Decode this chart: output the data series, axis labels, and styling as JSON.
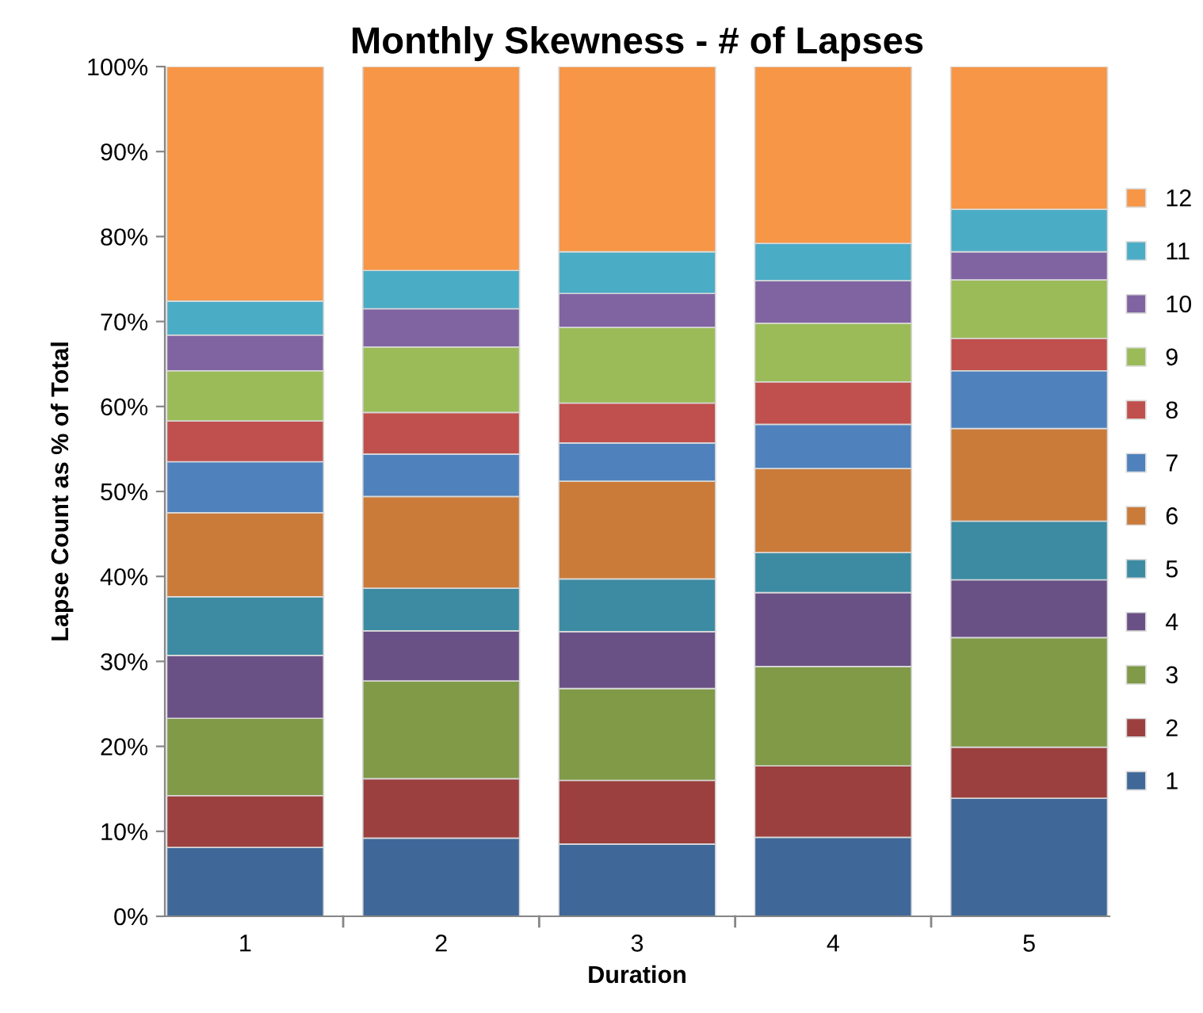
{
  "chart_data": {
    "type": "bar",
    "stacked": true,
    "title": "Monthly Skewness - # of Lapses",
    "xlabel": "Duration",
    "ylabel": "Lapse Count as % of Total",
    "categories": [
      "1",
      "2",
      "3",
      "4",
      "5"
    ],
    "series": [
      {
        "name": "1",
        "color": "#3f6899",
        "values": [
          8.1,
          9.2,
          8.5,
          9.3,
          13.9
        ]
      },
      {
        "name": "2",
        "color": "#9c403f",
        "values": [
          6.1,
          7.0,
          7.5,
          8.4,
          6.0
        ]
      },
      {
        "name": "3",
        "color": "#809a48",
        "values": [
          9.1,
          11.5,
          10.8,
          11.7,
          12.9
        ]
      },
      {
        "name": "4",
        "color": "#6a5185",
        "values": [
          7.4,
          5.9,
          6.7,
          8.7,
          6.8
        ]
      },
      {
        "name": "5",
        "color": "#3c8ba3",
        "values": [
          6.9,
          5.0,
          6.2,
          4.7,
          6.9
        ]
      },
      {
        "name": "6",
        "color": "#cb7b39",
        "values": [
          9.9,
          10.8,
          11.5,
          9.9,
          10.9
        ]
      },
      {
        "name": "7",
        "color": "#4f81bd",
        "values": [
          6.0,
          5.0,
          4.5,
          5.2,
          6.8
        ]
      },
      {
        "name": "8",
        "color": "#c0504d",
        "values": [
          4.8,
          4.9,
          4.7,
          5.0,
          3.8
        ]
      },
      {
        "name": "9",
        "color": "#9bbb59",
        "values": [
          5.9,
          7.7,
          8.9,
          6.9,
          6.9
        ]
      },
      {
        "name": "10",
        "color": "#8064a2",
        "values": [
          4.2,
          4.5,
          4.0,
          5.0,
          3.3
        ]
      },
      {
        "name": "11",
        "color": "#4bacc6",
        "values": [
          4.0,
          4.5,
          4.9,
          4.4,
          5.0
        ]
      },
      {
        "name": "12",
        "color": "#f79646",
        "values": [
          27.6,
          24.0,
          21.8,
          20.8,
          16.8
        ]
      }
    ],
    "ylim": [
      0,
      100
    ],
    "yticks": [
      {
        "value": 0,
        "label": "0%"
      },
      {
        "value": 10,
        "label": "10%"
      },
      {
        "value": 20,
        "label": "20%"
      },
      {
        "value": 30,
        "label": "30%"
      },
      {
        "value": 40,
        "label": "40%"
      },
      {
        "value": 50,
        "label": "50%"
      },
      {
        "value": 60,
        "label": "60%"
      },
      {
        "value": 70,
        "label": "70%"
      },
      {
        "value": 80,
        "label": "80%"
      },
      {
        "value": 90,
        "label": "90%"
      },
      {
        "value": 100,
        "label": "100%"
      }
    ],
    "grid": false,
    "legend": "right"
  }
}
